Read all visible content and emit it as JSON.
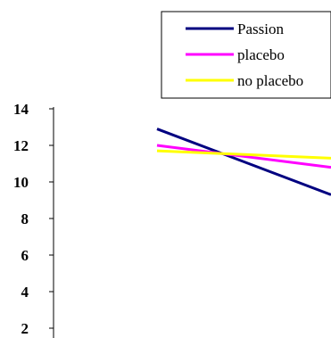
{
  "chart_data": {
    "type": "line",
    "x": [
      0,
      1
    ],
    "ylim": [
      0,
      14
    ],
    "y_ticks": [
      "2",
      "4",
      "6",
      "8",
      "10",
      "12",
      "14"
    ],
    "series": [
      {
        "name": "Passion",
        "color": "#000080",
        "values": [
          12.9,
          9.3
        ]
      },
      {
        "name": "placebo",
        "color": "#ff00ff",
        "values": [
          12.0,
          10.8
        ]
      },
      {
        "name": "no placebo",
        "color": "#ffff00",
        "values": [
          11.7,
          11.3
        ]
      }
    ],
    "legend_position": "top-right"
  }
}
